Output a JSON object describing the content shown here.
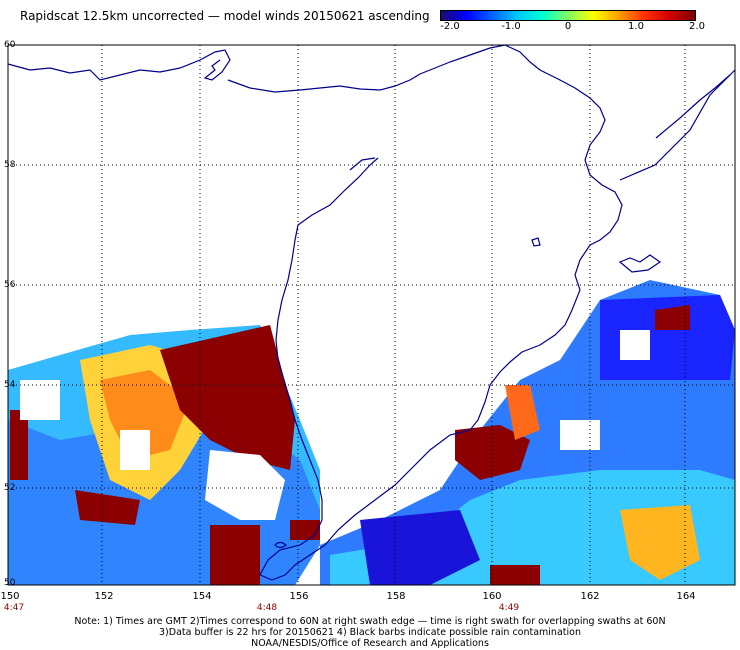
{
  "title": "Rapidscat 12.5km uncorrected — model winds 20150621 ascending",
  "colorbar": {
    "labels": [
      "-2.0",
      "-1.0",
      "0",
      "1.0",
      "2.0"
    ],
    "min": -2.0,
    "max": 2.0
  },
  "lat_labels": [
    "60",
    "58",
    "56",
    "54",
    "52",
    "50"
  ],
  "lon_labels": [
    "150",
    "152",
    "154",
    "156",
    "158",
    "160",
    "162",
    "164"
  ],
  "time_labels": [
    "4:47",
    "4:48",
    "4:49"
  ],
  "notes": [
    "Note: 1) Times are GMT 2)Times correspond to 60N at right swath edge — time is right swath for overlapping swaths at 60N",
    "3)Data buffer is 22 hrs for 20150621 4) Black barbs indicate possible rain contamination",
    "NOAA/NESDIS/Office of Research and Applications"
  ],
  "colors": {
    "coast": "#00008b",
    "rain": "#800000",
    "grid": "#000000"
  }
}
